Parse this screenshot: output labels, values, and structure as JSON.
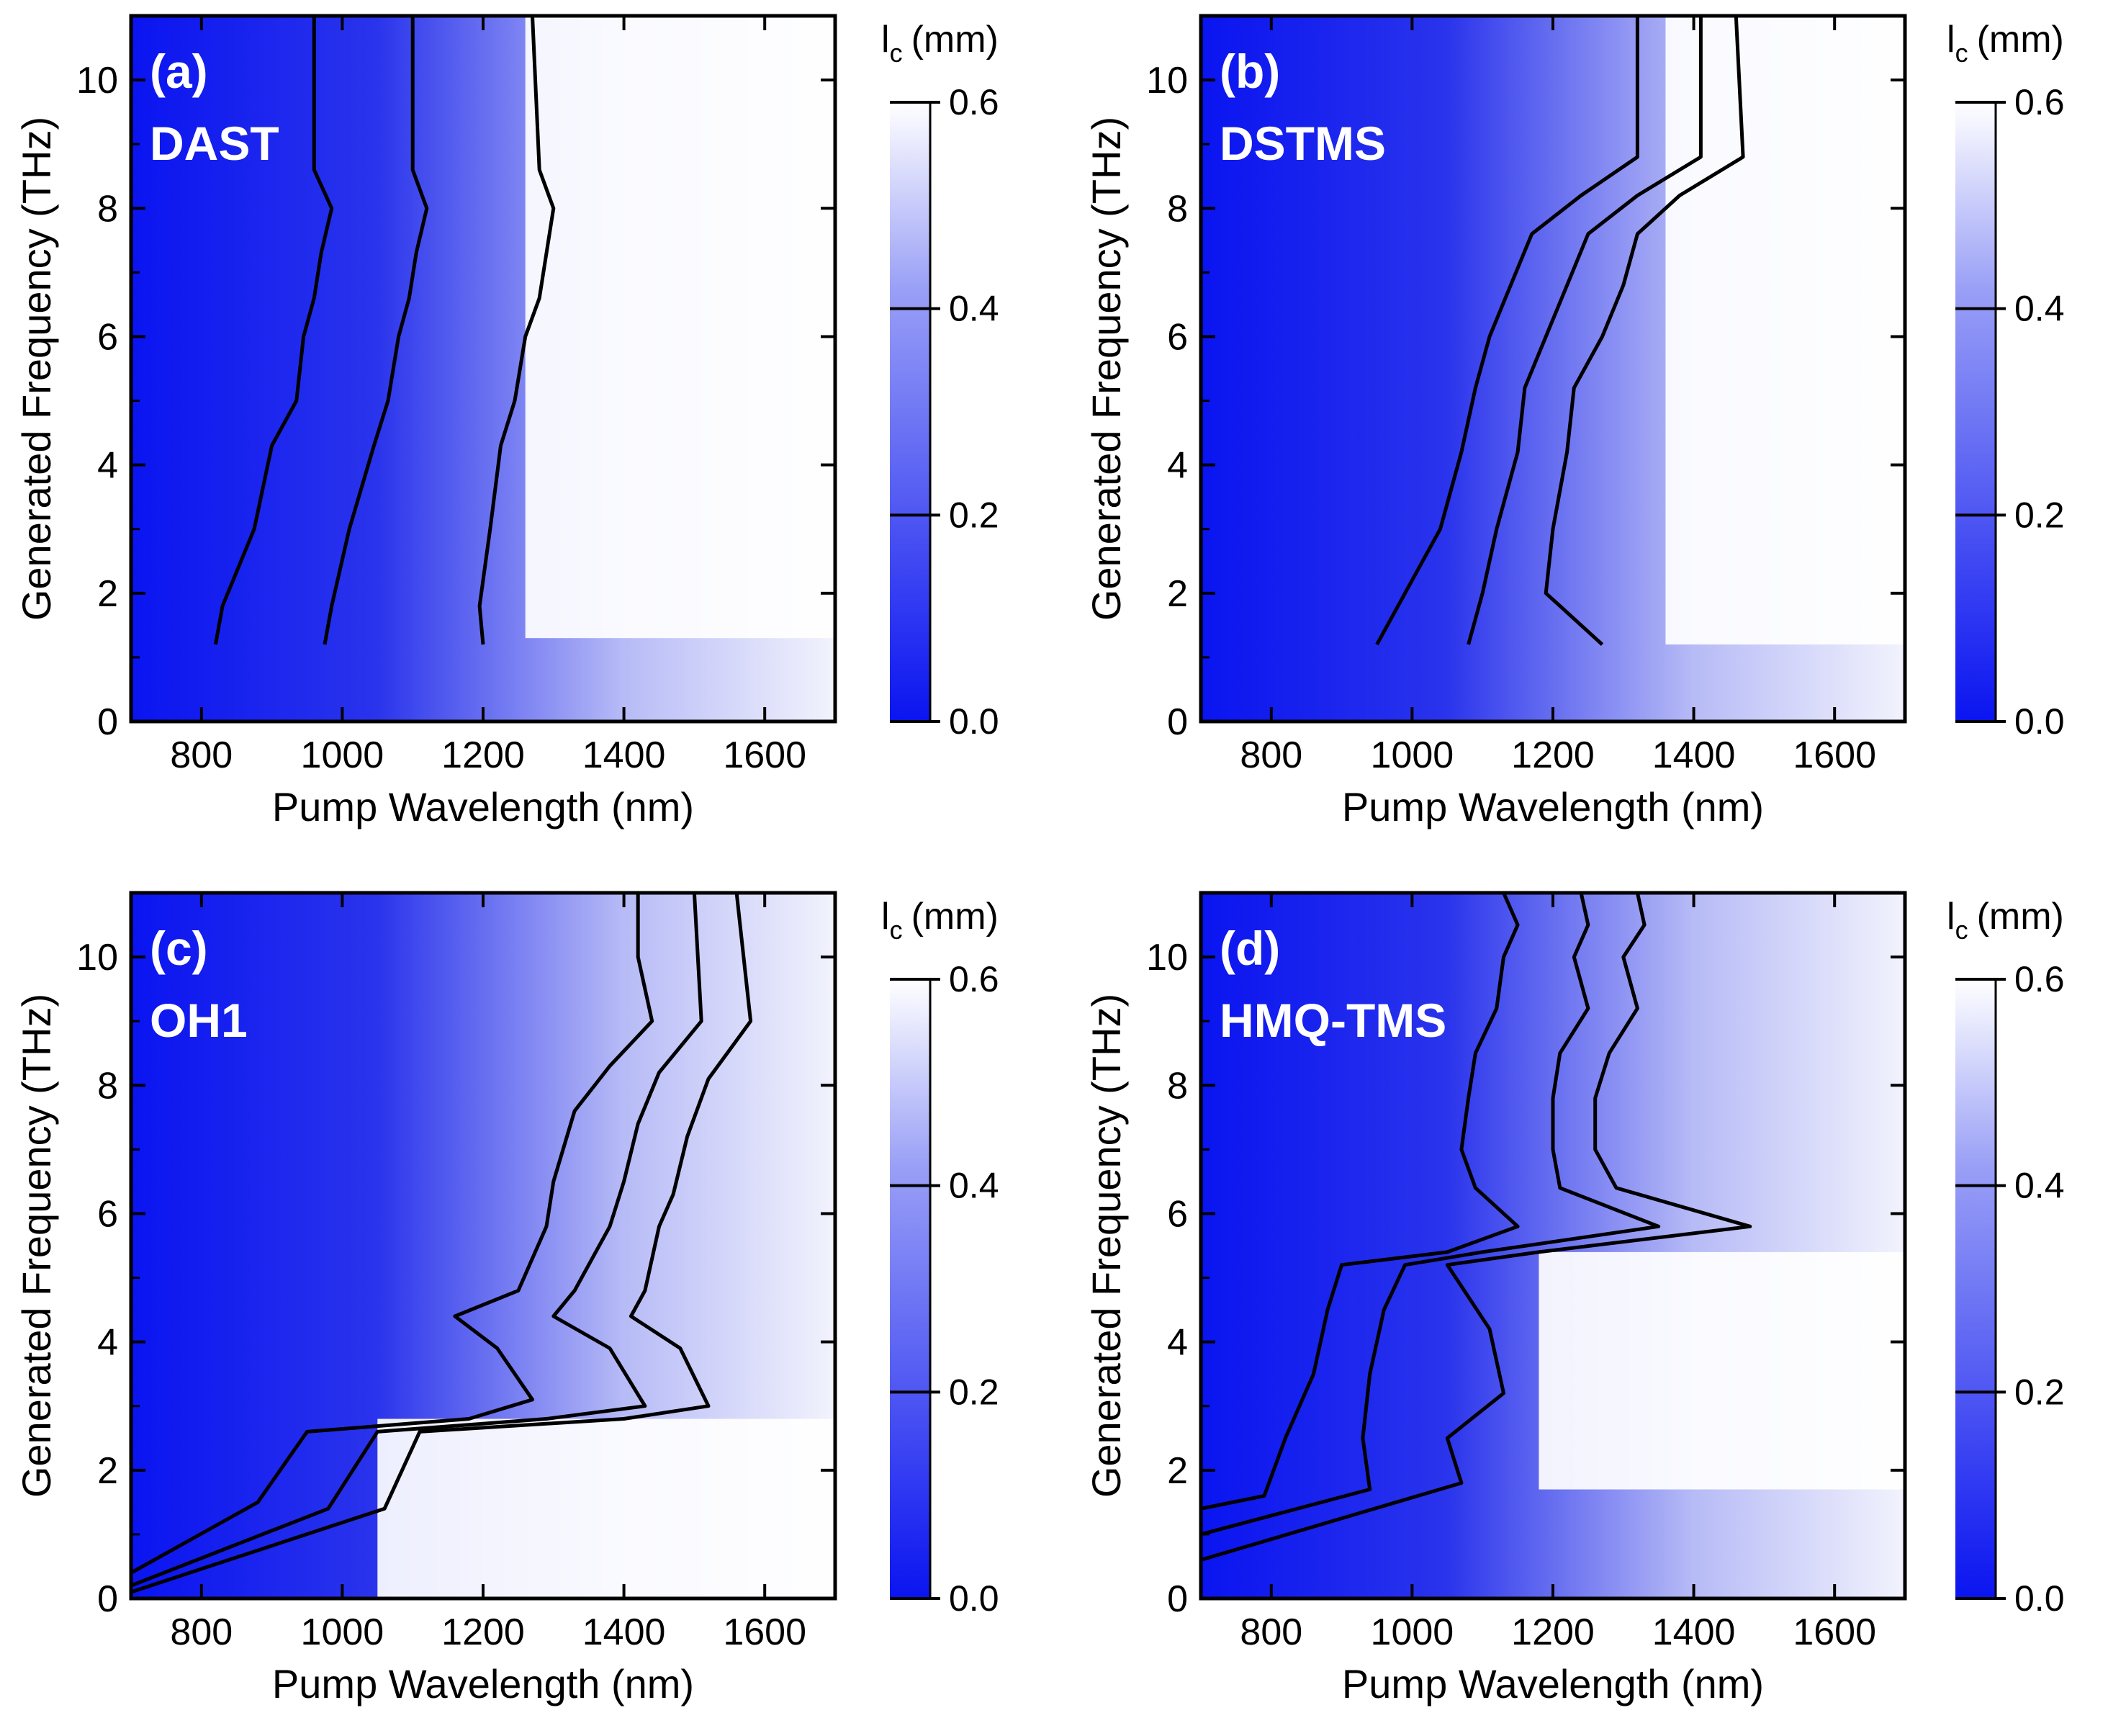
{
  "colors": {
    "low": "#0a14f0",
    "high": "#ffffff",
    "contour": "#000000",
    "frame": "#000000"
  },
  "colorbar": {
    "title": "l",
    "subscript": "c",
    "unit": "(mm)",
    "range": [
      0.0,
      0.6
    ],
    "ticks": [
      "0.0",
      "0.2",
      "0.4",
      "0.6"
    ]
  },
  "chart_data": [
    {
      "type": "heatmap",
      "panel": "(a)",
      "material": "DAST",
      "xlabel": "Pump Wavelength (nm)",
      "ylabel": "Generated Frequency (THz)",
      "xlim": [
        700,
        1700
      ],
      "ylim": [
        0,
        11
      ],
      "xticks": [
        "800",
        "1000",
        "1200",
        "1400",
        "1600"
      ],
      "yticks": [
        "0",
        "2",
        "4",
        "6",
        "8",
        "10"
      ],
      "value": "coherence length l_c (mm)",
      "contour_levels_mm": [
        0.2,
        0.4,
        0.6
      ],
      "saturated_region": {
        "x": [
          1260,
          1700
        ],
        "y": [
          1.3,
          11
        ]
      },
      "contours": [
        [
          [
            960,
            11
          ],
          [
            960,
            8.6
          ],
          [
            985,
            8.0
          ],
          [
            970,
            7.3
          ],
          [
            960,
            6.6
          ],
          [
            945,
            6.0
          ],
          [
            935,
            5.0
          ],
          [
            900,
            4.3
          ],
          [
            875,
            3.0
          ],
          [
            830,
            1.8
          ],
          [
            820,
            1.2
          ]
        ],
        [
          [
            1100,
            11
          ],
          [
            1100,
            8.6
          ],
          [
            1120,
            8.0
          ],
          [
            1105,
            7.3
          ],
          [
            1095,
            6.6
          ],
          [
            1080,
            6.0
          ],
          [
            1065,
            5.0
          ],
          [
            1045,
            4.3
          ],
          [
            1010,
            3.0
          ],
          [
            985,
            1.8
          ],
          [
            975,
            1.2
          ]
        ],
        [
          [
            1270,
            11
          ],
          [
            1280,
            8.6
          ],
          [
            1300,
            8.0
          ],
          [
            1290,
            7.3
          ],
          [
            1280,
            6.6
          ],
          [
            1260,
            6.0
          ],
          [
            1245,
            5.0
          ],
          [
            1225,
            4.3
          ],
          [
            1210,
            3.0
          ],
          [
            1195,
            1.8
          ],
          [
            1200,
            1.2
          ]
        ]
      ]
    },
    {
      "type": "heatmap",
      "panel": "(b)",
      "material": "DSTMS",
      "xlabel": "Pump Wavelength (nm)",
      "ylabel": "Generated Frequency (THz)",
      "xlim": [
        700,
        1700
      ],
      "ylim": [
        0,
        11
      ],
      "xticks": [
        "800",
        "1000",
        "1200",
        "1400",
        "1600"
      ],
      "yticks": [
        "0",
        "2",
        "4",
        "6",
        "8",
        "10"
      ],
      "value": "coherence length l_c (mm)",
      "contour_levels_mm": [
        0.2,
        0.4,
        0.6
      ],
      "saturated_region": {
        "x": [
          1360,
          1700
        ],
        "y": [
          1.2,
          11
        ]
      },
      "contours": [
        [
          [
            1320,
            11
          ],
          [
            1320,
            8.8
          ],
          [
            1240,
            8.2
          ],
          [
            1170,
            7.6
          ],
          [
            1140,
            6.8
          ],
          [
            1110,
            6.0
          ],
          [
            1090,
            5.2
          ],
          [
            1070,
            4.2
          ],
          [
            1040,
            3.0
          ],
          [
            990,
            2.0
          ],
          [
            950,
            1.2
          ]
        ],
        [
          [
            1410,
            11
          ],
          [
            1410,
            8.8
          ],
          [
            1320,
            8.2
          ],
          [
            1250,
            7.6
          ],
          [
            1220,
            6.8
          ],
          [
            1190,
            6.0
          ],
          [
            1160,
            5.2
          ],
          [
            1150,
            4.2
          ],
          [
            1120,
            3.0
          ],
          [
            1100,
            2.0
          ],
          [
            1080,
            1.2
          ]
        ],
        [
          [
            1460,
            11
          ],
          [
            1470,
            8.8
          ],
          [
            1380,
            8.2
          ],
          [
            1320,
            7.6
          ],
          [
            1300,
            6.8
          ],
          [
            1270,
            6.0
          ],
          [
            1230,
            5.2
          ],
          [
            1220,
            4.2
          ],
          [
            1200,
            3.0
          ],
          [
            1190,
            2.0
          ],
          [
            1270,
            1.2
          ]
        ]
      ]
    },
    {
      "type": "heatmap",
      "panel": "(c)",
      "material": "OH1",
      "xlabel": "Pump Wavelength (nm)",
      "ylabel": "Generated Frequency (THz)",
      "xlim": [
        700,
        1700
      ],
      "ylim": [
        0,
        11
      ],
      "xticks": [
        "800",
        "1000",
        "1200",
        "1400",
        "1600"
      ],
      "yticks": [
        "0",
        "2",
        "4",
        "6",
        "8",
        "10"
      ],
      "value": "coherence length l_c (mm)",
      "contour_levels_mm": [
        0.2,
        0.4,
        0.6
      ],
      "saturated_region": {
        "x": [
          1050,
          1700
        ],
        "y": [
          0,
          2.8
        ]
      },
      "contours": [
        [
          [
            1420,
            11
          ],
          [
            1420,
            10
          ],
          [
            1440,
            9
          ],
          [
            1380,
            8.3
          ],
          [
            1330,
            7.6
          ],
          [
            1300,
            6.5
          ],
          [
            1290,
            5.8
          ],
          [
            1250,
            4.8
          ],
          [
            1160,
            4.4
          ],
          [
            1220,
            3.9
          ],
          [
            1270,
            3.1
          ],
          [
            1180,
            2.8
          ],
          [
            950,
            2.6
          ],
          [
            880,
            1.5
          ],
          [
            700,
            0.4
          ]
        ],
        [
          [
            1500,
            11
          ],
          [
            1510,
            9
          ],
          [
            1450,
            8.2
          ],
          [
            1420,
            7.4
          ],
          [
            1400,
            6.5
          ],
          [
            1380,
            5.8
          ],
          [
            1330,
            4.8
          ],
          [
            1300,
            4.4
          ],
          [
            1380,
            3.9
          ],
          [
            1430,
            3.0
          ],
          [
            1290,
            2.8
          ],
          [
            1050,
            2.6
          ],
          [
            980,
            1.4
          ],
          [
            700,
            0.2
          ]
        ],
        [
          [
            1560,
            11
          ],
          [
            1580,
            9
          ],
          [
            1520,
            8.1
          ],
          [
            1490,
            7.2
          ],
          [
            1470,
            6.3
          ],
          [
            1450,
            5.8
          ],
          [
            1430,
            4.8
          ],
          [
            1410,
            4.4
          ],
          [
            1480,
            3.9
          ],
          [
            1520,
            3.0
          ],
          [
            1400,
            2.8
          ],
          [
            1110,
            2.6
          ],
          [
            1060,
            1.4
          ],
          [
            700,
            0.1
          ]
        ]
      ]
    },
    {
      "type": "heatmap",
      "panel": "(d)",
      "material": "HMQ-TMS",
      "xlabel": "Pump Wavelength (nm)",
      "ylabel": "Generated Frequency (THz)",
      "xlim": [
        700,
        1700
      ],
      "ylim": [
        0,
        11
      ],
      "xticks": [
        "800",
        "1000",
        "1200",
        "1400",
        "1600"
      ],
      "yticks": [
        "0",
        "2",
        "4",
        "6",
        "8",
        "10"
      ],
      "value": "coherence length l_c (mm)",
      "contour_levels_mm": [
        0.2,
        0.4,
        0.6
      ],
      "saturated_region": {
        "x": [
          1180,
          1700
        ],
        "y": [
          1.7,
          5.4
        ]
      },
      "contours": [
        [
          [
            1130,
            11
          ],
          [
            1150,
            10.5
          ],
          [
            1130,
            10
          ],
          [
            1120,
            9.2
          ],
          [
            1090,
            8.5
          ],
          [
            1080,
            7.8
          ],
          [
            1070,
            7.0
          ],
          [
            1090,
            6.4
          ],
          [
            1150,
            5.8
          ],
          [
            1050,
            5.4
          ],
          [
            900,
            5.2
          ],
          [
            880,
            4.5
          ],
          [
            860,
            3.5
          ],
          [
            820,
            2.5
          ],
          [
            790,
            1.6
          ],
          [
            700,
            1.4
          ]
        ],
        [
          [
            1240,
            11
          ],
          [
            1250,
            10.5
          ],
          [
            1230,
            10
          ],
          [
            1250,
            9.2
          ],
          [
            1210,
            8.5
          ],
          [
            1200,
            7.8
          ],
          [
            1200,
            7.0
          ],
          [
            1210,
            6.4
          ],
          [
            1350,
            5.8
          ],
          [
            1100,
            5.4
          ],
          [
            990,
            5.2
          ],
          [
            960,
            4.5
          ],
          [
            940,
            3.5
          ],
          [
            930,
            2.5
          ],
          [
            940,
            1.7
          ],
          [
            700,
            1.0
          ]
        ],
        [
          [
            1320,
            11
          ],
          [
            1330,
            10.5
          ],
          [
            1300,
            10
          ],
          [
            1320,
            9.2
          ],
          [
            1280,
            8.5
          ],
          [
            1260,
            7.8
          ],
          [
            1260,
            7.0
          ],
          [
            1290,
            6.4
          ],
          [
            1480,
            5.8
          ],
          [
            1180,
            5.4
          ],
          [
            1050,
            5.2
          ],
          [
            1110,
            4.2
          ],
          [
            1130,
            3.2
          ],
          [
            1050,
            2.5
          ],
          [
            1070,
            1.8
          ],
          [
            700,
            0.6
          ]
        ]
      ]
    }
  ]
}
